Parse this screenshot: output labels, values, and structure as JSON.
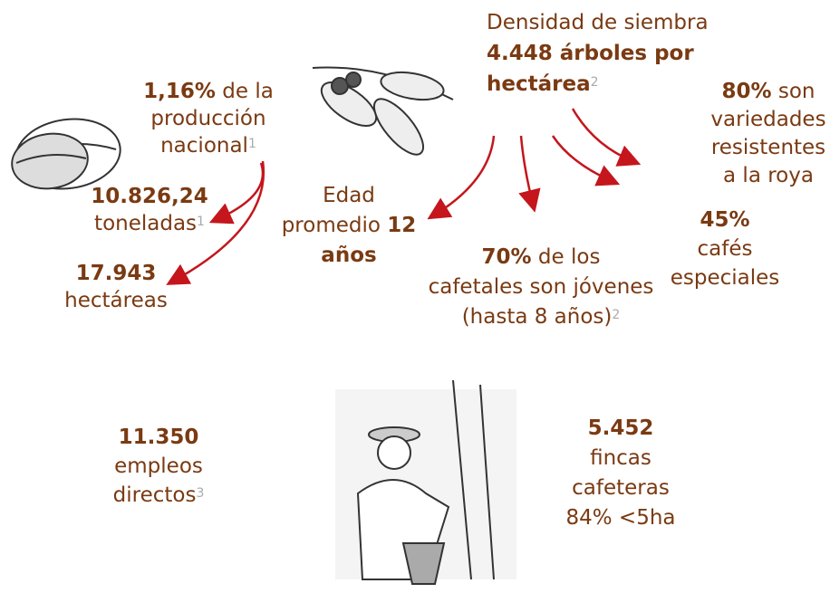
{
  "items": {
    "production": {
      "strong": "1,16%",
      "lines": [
        "de la",
        "producción",
        "nacional"
      ],
      "note": "1"
    },
    "tons": {
      "strong": "10.826,24",
      "lines": [
        "toneladas"
      ],
      "note": "1"
    },
    "area": {
      "strong": "17.943",
      "lines": [
        "hectáreas"
      ]
    },
    "age": {
      "lines": [
        "Edad",
        "promedio"
      ],
      "strong": [
        "12",
        "años"
      ]
    },
    "density": {
      "lines": [
        "Densidad de siembra"
      ],
      "strong": [
        "4.448 árboles por",
        "hectárea"
      ],
      "note": "2"
    },
    "resistant": {
      "strong": "80%",
      "lines": [
        "son",
        "variedades",
        "resistentes",
        "a la roya"
      ]
    },
    "special": {
      "strong": "45%",
      "lines": [
        "cafés",
        "especiales"
      ]
    },
    "young": {
      "strong": "70%",
      "lines": [
        "de los",
        "cafetales son jóvenes",
        "(hasta 8 años)"
      ],
      "note": "2"
    },
    "jobs": {
      "strong": "11.350",
      "lines": [
        "empleos",
        "directos"
      ],
      "note": "3"
    },
    "farms": {
      "strong": "5.452",
      "lines": [
        "fincas",
        "cafeteras",
        "84% <5ha"
      ]
    }
  }
}
